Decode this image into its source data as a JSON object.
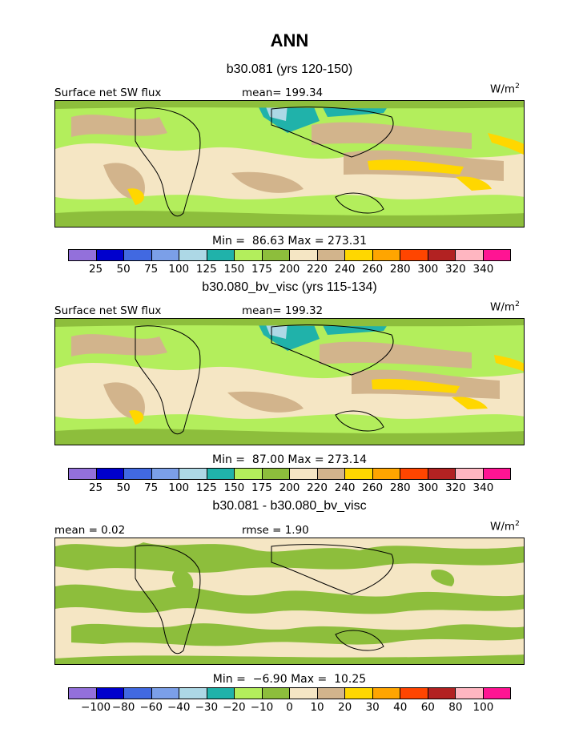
{
  "title": "ANN",
  "palette": [
    "#9370DB",
    "#0000CD",
    "#4169E1",
    "#7B9FE8",
    "#ADD8E6",
    "#20B2AA",
    "#B3EE5C",
    "#8DBE3C",
    "#F5E6C4",
    "#D2B48C",
    "#FFD700",
    "#FFA500",
    "#FF4500",
    "#B22222",
    "#FFB6C1",
    "#FF1493"
  ],
  "panels": [
    {
      "case_title": "b30.081 (yrs 120-150)",
      "variable": "Surface net SW flux",
      "stat_left": "mean= 199.34",
      "units": "W/m",
      "units_exp": "2",
      "minmax": "Min =  86.63 Max = 273.31",
      "colorbar_labels": [
        "25",
        "50",
        "75",
        "100",
        "125",
        "150",
        "175",
        "200",
        "220",
        "240",
        "260",
        "280",
        "300",
        "320",
        "340"
      ]
    },
    {
      "case_title": "b30.080_bv_visc (yrs 115-134)",
      "variable": "Surface net SW flux",
      "stat_left": "mean= 199.32",
      "units": "W/m",
      "units_exp": "2",
      "minmax": "Min =  87.00 Max = 273.14",
      "colorbar_labels": [
        "25",
        "50",
        "75",
        "100",
        "125",
        "150",
        "175",
        "200",
        "220",
        "240",
        "260",
        "280",
        "300",
        "320",
        "340"
      ]
    },
    {
      "case_title": "b30.081 - b30.080_bv_visc",
      "variable": "mean =    0.02",
      "stat_left": "rmse =    1.90",
      "units": "W/m",
      "units_exp": "2",
      "minmax": "Min =  −6.90 Max =  10.25",
      "colorbar_labels": [
        "−100",
        "−80",
        "−60",
        "−40",
        "−30",
        "−20",
        "−10",
        "0",
        "10",
        "20",
        "30",
        "40",
        "60",
        "80",
        "100"
      ]
    }
  ]
}
